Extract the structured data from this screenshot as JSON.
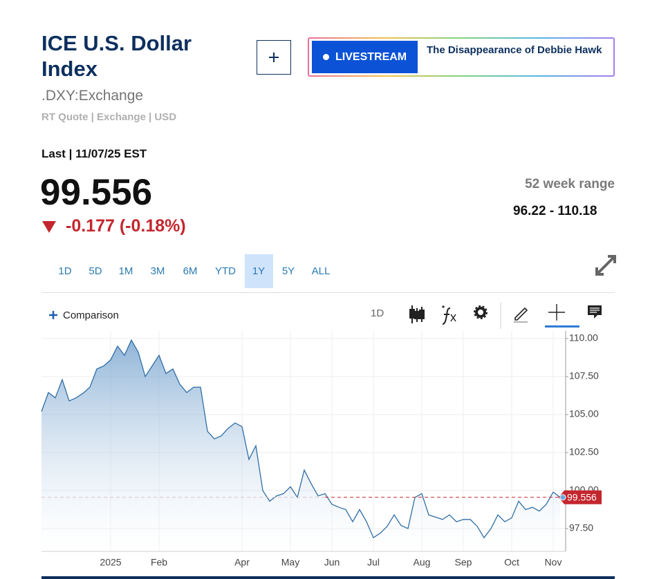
{
  "header": {
    "title": "ICE U.S. Dollar Index",
    "symbol": ".DXY:Exchange",
    "meta": "RT Quote | Exchange | USD"
  },
  "livestream": {
    "badge": "LIVESTREAM",
    "headline": "The Disappearance of Debbie Hawk"
  },
  "quote": {
    "last_label": "Last | 11/07/25 EST",
    "price": "99.556",
    "change": "-0.177 (-0.18%)"
  },
  "range": {
    "label": "52 week range",
    "value": "96.22 - 110.18"
  },
  "tabs": [
    "1D",
    "5D",
    "1M",
    "3M",
    "6M",
    "YTD",
    "1Y",
    "5Y",
    "ALL"
  ],
  "selected_tab": "1Y",
  "toolbar": {
    "comparison": "Comparison",
    "interval": "1D"
  },
  "chart_data": {
    "type": "line",
    "categories": [
      null,
      null,
      null,
      null,
      null,
      null,
      null,
      null,
      null,
      null,
      "2025",
      null,
      null,
      null,
      null,
      null,
      null,
      "Feb",
      null,
      null,
      null,
      null,
      null,
      null,
      null,
      null,
      null,
      null,
      null,
      "Apr",
      null,
      null,
      null,
      null,
      null,
      null,
      "May",
      null,
      null,
      null,
      null,
      null,
      "Jun",
      null,
      null,
      null,
      null,
      null,
      "Jul",
      null,
      null,
      null,
      null,
      null,
      null,
      "Aug",
      null,
      null,
      null,
      null,
      null,
      "Sep",
      null,
      null,
      null,
      null,
      null,
      null,
      "Oct",
      null,
      null,
      null,
      null,
      null,
      "Nov",
      null
    ],
    "values": [
      105.2,
      106.45,
      106.1,
      107.3,
      105.9,
      106.1,
      106.4,
      106.8,
      108.0,
      108.2,
      108.6,
      109.5,
      108.9,
      109.9,
      109.1,
      107.5,
      108.2,
      108.9,
      107.7,
      108.0,
      107.0,
      106.45,
      106.8,
      106.8,
      103.9,
      103.4,
      103.6,
      104.1,
      104.45,
      104.2,
      102.05,
      102.95,
      100.0,
      99.3,
      99.65,
      99.8,
      100.25,
      99.55,
      101.35,
      100.45,
      99.65,
      99.8,
      99.1,
      98.9,
      98.75,
      97.95,
      98.75,
      97.95,
      96.9,
      97.2,
      97.65,
      98.4,
      97.7,
      97.5,
      99.55,
      99.8,
      98.4,
      98.25,
      98.1,
      98.4,
      97.95,
      98.1,
      98.1,
      97.65,
      96.9,
      97.5,
      98.4,
      97.95,
      98.2,
      99.3,
      98.75,
      98.9,
      98.65,
      99.1,
      99.9,
      99.556
    ],
    "color": "#2f6ea5",
    "ylim": [
      96,
      110.5
    ],
    "yticks": [
      {
        "value": 97.5,
        "label": "97.50"
      },
      {
        "value": 100,
        "label": "100.00"
      },
      {
        "value": 102.5,
        "label": "102.50"
      },
      {
        "value": 105,
        "label": "105.00"
      },
      {
        "value": 107.5,
        "label": "107.50"
      },
      {
        "value": 110,
        "label": "110.00"
      }
    ],
    "grid": true,
    "last_value": 99.556,
    "last_value_color": "#c4262e"
  }
}
